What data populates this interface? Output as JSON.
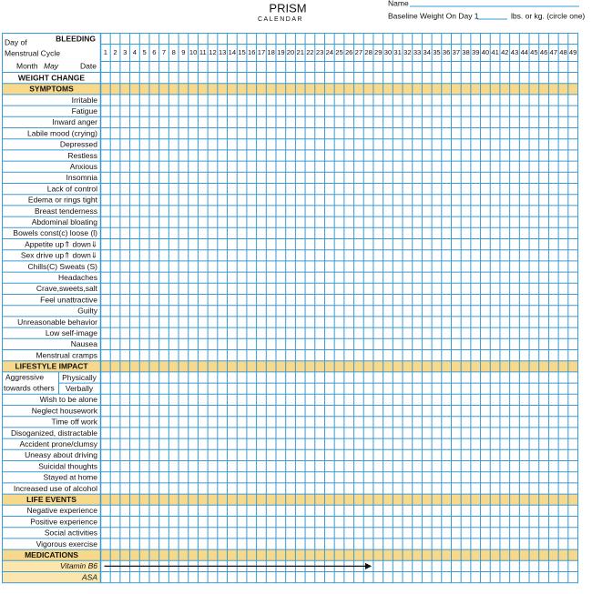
{
  "header": {
    "title": "PRISM",
    "subtitle": "CALENDAR",
    "name_label": "Name",
    "baseline_label": "Baseline Weight On Day 1",
    "units_label": "lbs.  or kg. (circle one)"
  },
  "grid": {
    "bleeding_label": "BLEEDING",
    "day_label_1": "Day of",
    "day_label_2": "Menstrual Cycle",
    "month_label": "Month",
    "month_value": "May",
    "date_label": "Date",
    "days": [
      1,
      2,
      3,
      4,
      5,
      6,
      7,
      8,
      9,
      10,
      11,
      12,
      13,
      14,
      15,
      16,
      17,
      18,
      19,
      20,
      21,
      22,
      23,
      24,
      25,
      26,
      27,
      28,
      29,
      30,
      31,
      32,
      33,
      34,
      35,
      36,
      37,
      38,
      39,
      40,
      41,
      42,
      43,
      44,
      45,
      46,
      47,
      48,
      49
    ]
  },
  "rows": [
    {
      "label": "WEIGHT CHANGE",
      "kind": "heading"
    },
    {
      "label": "SYMPTOMS",
      "kind": "section"
    },
    {
      "label": "Irritable",
      "kind": "item"
    },
    {
      "label": "Fatigue",
      "kind": "item"
    },
    {
      "label": "Inward anger",
      "kind": "item"
    },
    {
      "label": "Labile mood (crying)",
      "kind": "item"
    },
    {
      "label": "Depressed",
      "kind": "item"
    },
    {
      "label": "Restless",
      "kind": "item"
    },
    {
      "label": "Anxious",
      "kind": "item"
    },
    {
      "label": "Insomnia",
      "kind": "item"
    },
    {
      "label": "Lack of control",
      "kind": "item"
    },
    {
      "label": "Edema or rings tight",
      "kind": "item"
    },
    {
      "label": "Breast tenderness",
      "kind": "item"
    },
    {
      "label": "Abdominal bloating",
      "kind": "item"
    },
    {
      "label": "Bowels const(c) loose (l)",
      "kind": "item"
    },
    {
      "label": "Appetite up⇑ down⇓",
      "kind": "item"
    },
    {
      "label": "Sex drive up⇑ down⇓",
      "kind": "item"
    },
    {
      "label": "Chills(C) Sweats (S)",
      "kind": "item"
    },
    {
      "label": "Headaches",
      "kind": "item"
    },
    {
      "label": "Crave,sweets,salt",
      "kind": "item"
    },
    {
      "label": "Feel unattractive",
      "kind": "item"
    },
    {
      "label": "Guilty",
      "kind": "item"
    },
    {
      "label": "Unreasonable behavior",
      "kind": "item"
    },
    {
      "label": "Low self-image",
      "kind": "item"
    },
    {
      "label": "Nausea",
      "kind": "item"
    },
    {
      "label": "Menstrual cramps",
      "kind": "item"
    },
    {
      "label": "LIFESTYLE IMPACT",
      "kind": "section"
    },
    {
      "label": "Physically",
      "kind": "sub",
      "group_1": "Aggressive",
      "group_2": "towards others"
    },
    {
      "label": "Verbally",
      "kind": "sub"
    },
    {
      "label": "Wish to be alone",
      "kind": "item"
    },
    {
      "label": "Neglect housework",
      "kind": "item"
    },
    {
      "label": "Time off work",
      "kind": "item"
    },
    {
      "label": "Disoganized, distractable",
      "kind": "item"
    },
    {
      "label": "Accident prone/clumsy",
      "kind": "item"
    },
    {
      "label": "Uneasy about driving",
      "kind": "item"
    },
    {
      "label": "Suicidal thoughts",
      "kind": "item"
    },
    {
      "label": "Stayed at home",
      "kind": "item"
    },
    {
      "label": "Increased use of alcohol",
      "kind": "item"
    },
    {
      "label": "LIFE EVENTS",
      "kind": "section"
    },
    {
      "label": "Negative experience",
      "kind": "item"
    },
    {
      "label": "Positive experience",
      "kind": "item"
    },
    {
      "label": "Social activities",
      "kind": "item"
    },
    {
      "label": "Vigorous exercise",
      "kind": "item"
    },
    {
      "label": "MEDICATIONS",
      "kind": "section"
    },
    {
      "label": "Vitamin B6",
      "kind": "medication"
    },
    {
      "label": "ASA",
      "kind": "medication"
    }
  ]
}
